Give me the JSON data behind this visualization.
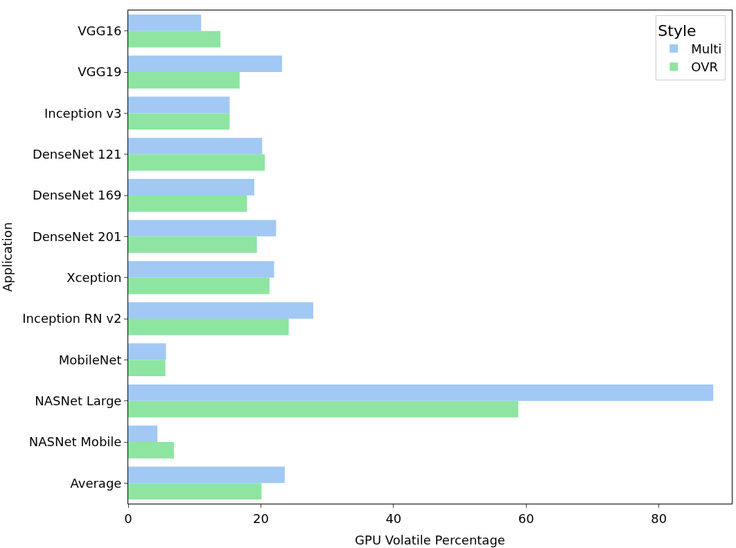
{
  "chart_data": {
    "type": "bar",
    "orientation": "horizontal",
    "xlabel": "GPU Volatile Percentage",
    "ylabel": "Application",
    "legend_title": "Style",
    "legend": "top right",
    "categories": [
      "VGG16",
      "VGG19",
      "Inception v3",
      "DenseNet 121",
      "DenseNet 169",
      "DenseNet 201",
      "Xception",
      "Inception RN v2",
      "MobileNet",
      "NASNet Large",
      "NASNet Mobile",
      "Average"
    ],
    "series": [
      {
        "name": "Multi",
        "color": "#a1c9f4",
        "values": [
          11.0,
          23.2,
          15.3,
          20.2,
          19.0,
          22.3,
          22.0,
          27.9,
          5.7,
          88.2,
          4.4,
          23.6
        ]
      },
      {
        "name": "OVR",
        "color": "#8de5a1",
        "values": [
          13.9,
          16.8,
          15.3,
          20.6,
          17.9,
          19.4,
          21.3,
          24.2,
          5.6,
          58.8,
          6.9,
          20.1
        ]
      }
    ],
    "xlim": [
      0,
      91
    ],
    "xticks": [
      0,
      20,
      40,
      60,
      80
    ]
  }
}
